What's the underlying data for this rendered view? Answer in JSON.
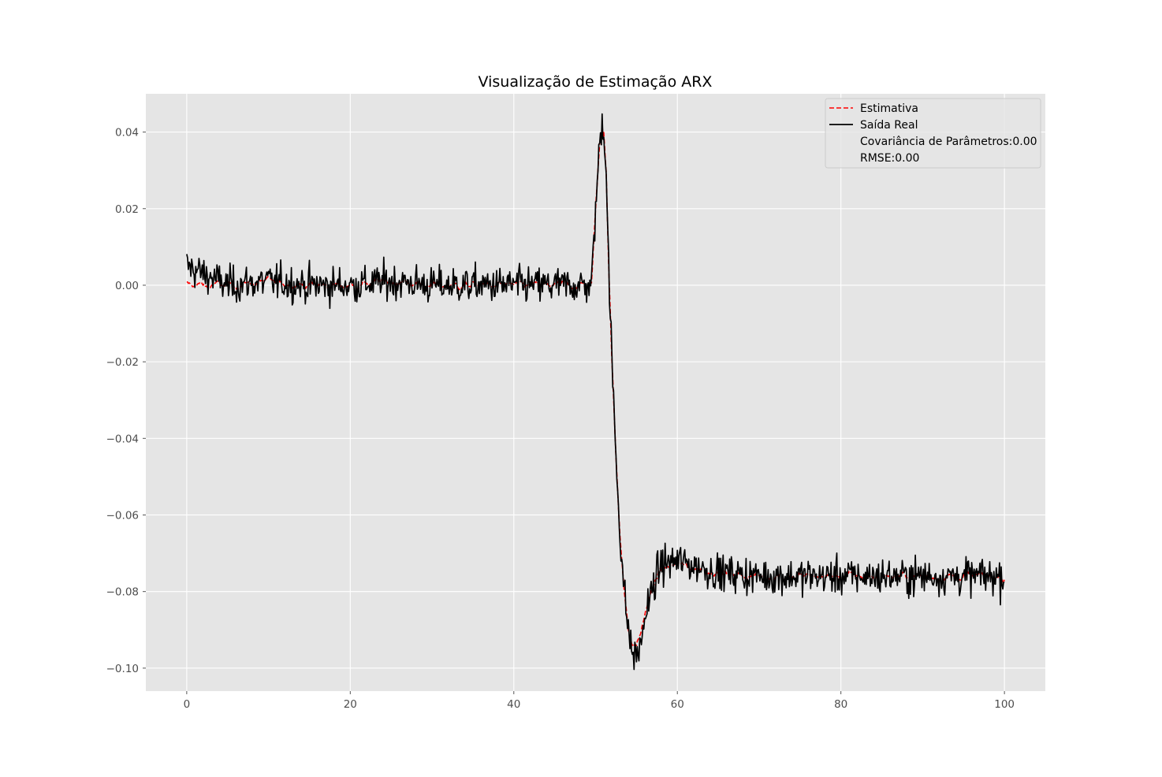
{
  "chart_data": {
    "type": "line",
    "title": "Visualização de Estimação ARX",
    "xlabel": "",
    "ylabel": "",
    "xlim": [
      -5,
      105
    ],
    "ylim": [
      -0.106,
      0.05
    ],
    "xticks": [
      0,
      20,
      40,
      60,
      80,
      100
    ],
    "xtick_labels": [
      "0",
      "20",
      "40",
      "60",
      "80",
      "100"
    ],
    "yticks": [
      -0.1,
      -0.08,
      -0.06,
      -0.04,
      -0.02,
      0.0,
      0.02,
      0.04
    ],
    "ytick_labels": [
      "−0.10",
      "−0.08",
      "−0.06",
      "−0.04",
      "−0.02",
      "0.00",
      "0.02",
      "0.04"
    ],
    "grid": true,
    "style": "ggplot",
    "legend": {
      "placement": "upper right",
      "entries": [
        "Estimativa",
        "Saída Real",
        "Covariância de Parâmetros:0.00",
        "RMSE:0.00"
      ]
    },
    "series": [
      {
        "name": "Estimativa",
        "color": "#ff0000",
        "linestyle": "dashed",
        "x": [
          0,
          5,
          10,
          15,
          20,
          25,
          30,
          35,
          40,
          45,
          49.5,
          50,
          50.5,
          50.8,
          51,
          51.3,
          51.6,
          52,
          52.5,
          53,
          53.5,
          54,
          54.5,
          55,
          55.5,
          56,
          57,
          58,
          60,
          65,
          70,
          75,
          80,
          85,
          90,
          95,
          100
        ],
        "y": [
          0.0,
          0.0,
          0.001,
          0.0,
          0.0,
          0.001,
          0.0,
          0.0,
          0.0,
          0.0,
          0.0,
          0.02,
          0.037,
          0.042,
          0.041,
          0.03,
          0.005,
          -0.02,
          -0.045,
          -0.065,
          -0.08,
          -0.09,
          -0.094,
          -0.094,
          -0.091,
          -0.086,
          -0.079,
          -0.074,
          -0.073,
          -0.075,
          -0.076,
          -0.076,
          -0.076,
          -0.076,
          -0.076,
          -0.076,
          -0.076
        ]
      },
      {
        "name": "Saída Real",
        "color": "#000000",
        "linestyle": "solid",
        "x": [
          0,
          5,
          10,
          15,
          20,
          25,
          30,
          35,
          40,
          45,
          49.5,
          50,
          50.5,
          50.8,
          51,
          51.3,
          51.6,
          52,
          52.5,
          53,
          53.5,
          54,
          54.5,
          55,
          55.5,
          56,
          57,
          58,
          60,
          65,
          70,
          75,
          80,
          85,
          90,
          95,
          100
        ],
        "y": [
          0.005,
          0.0,
          0.001,
          0.0,
          0.0,
          0.001,
          0.0,
          0.0,
          0.0,
          0.0,
          0.0,
          0.02,
          0.037,
          0.043,
          0.041,
          0.03,
          0.005,
          -0.02,
          -0.045,
          -0.065,
          -0.08,
          -0.09,
          -0.096,
          -0.097,
          -0.094,
          -0.087,
          -0.079,
          -0.073,
          -0.072,
          -0.075,
          -0.076,
          -0.076,
          -0.076,
          -0.076,
          -0.076,
          -0.076,
          -0.076
        ],
        "noise_std": 0.004
      }
    ]
  }
}
